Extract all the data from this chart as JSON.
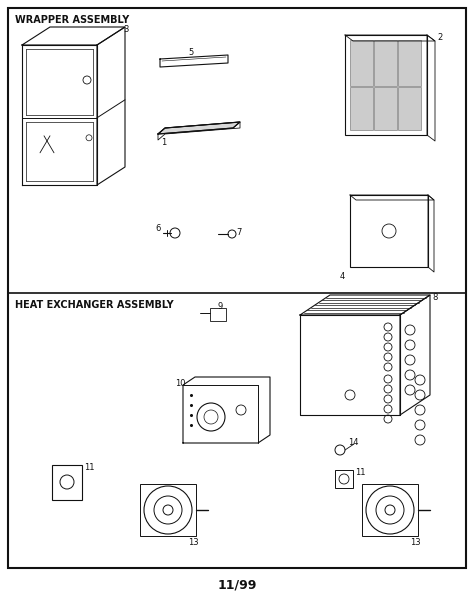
{
  "section1_label": "WRAPPER ASSEMBLY",
  "section2_label": "HEAT EXCHANGER ASSEMBLY",
  "footer": "11/99",
  "bg_color": "#ffffff",
  "line_color": "#111111",
  "fig_width": 4.74,
  "fig_height": 6.1,
  "dpi": 100
}
